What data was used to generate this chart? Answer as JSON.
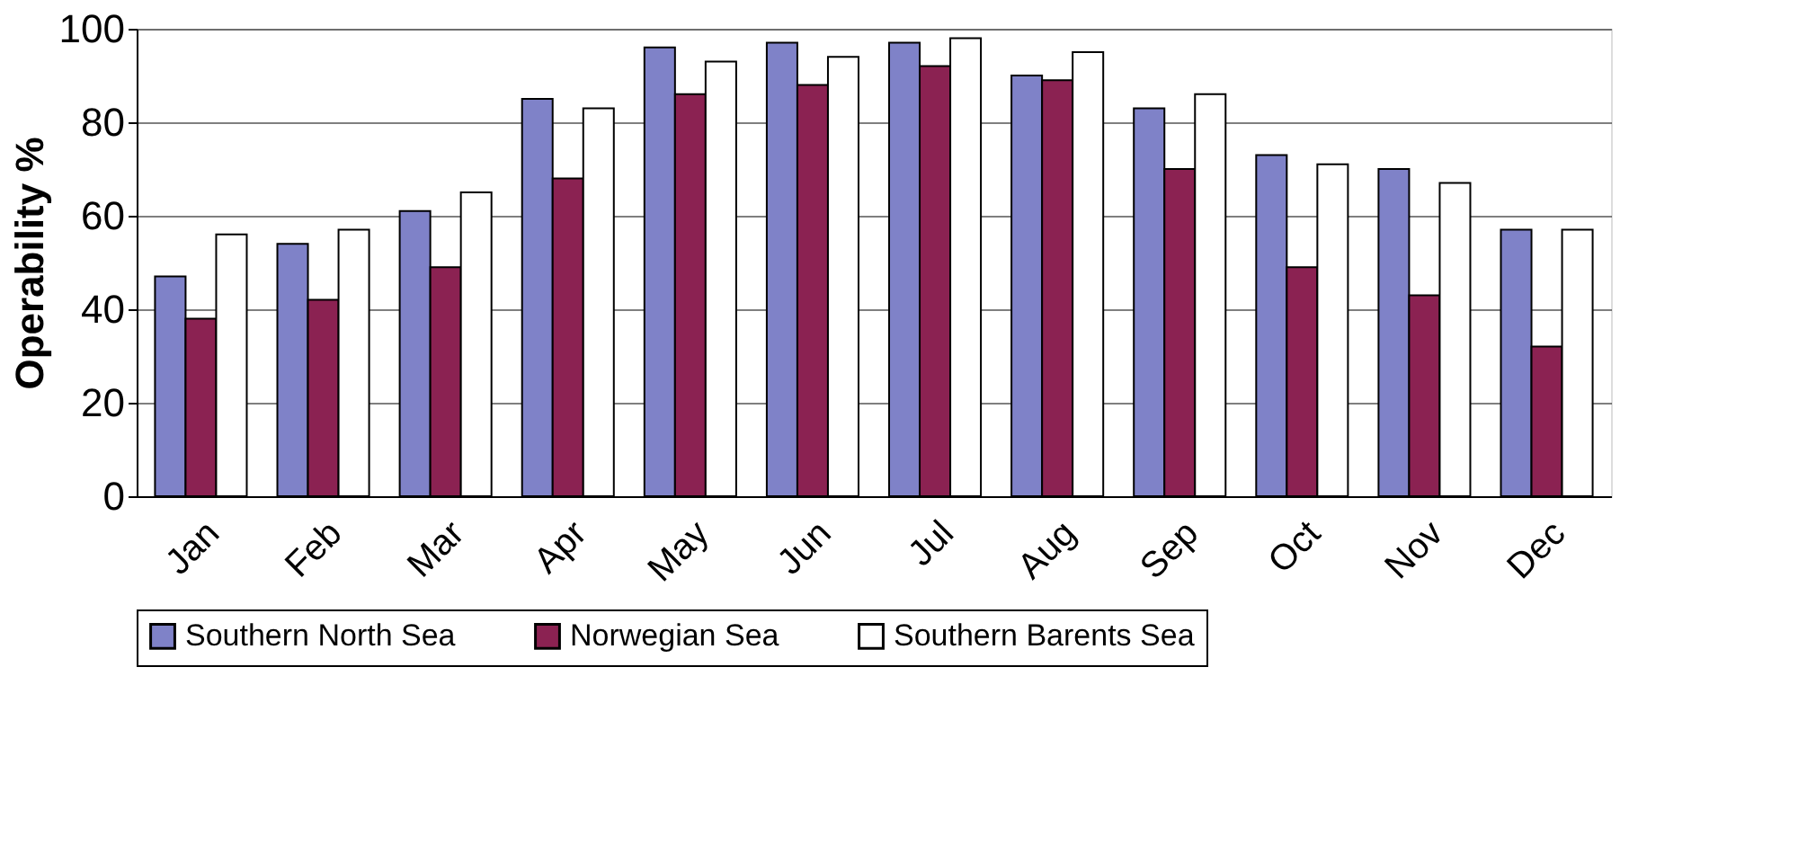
{
  "chart_data": {
    "type": "bar",
    "ylabel": "Operability %",
    "categories": [
      "Jan",
      "Feb",
      "Mar",
      "Apr",
      "May",
      "Jun",
      "Jul",
      "Aug",
      "Sep",
      "Oct",
      "Nov",
      "Dec"
    ],
    "series": [
      {
        "name": "Southern North Sea",
        "color": "#7f82c8",
        "values": [
          47,
          54,
          61,
          85,
          96,
          97,
          97,
          90,
          83,
          73,
          70,
          57
        ]
      },
      {
        "name": "Norwegian Sea",
        "color": "#8b2252",
        "values": [
          38,
          42,
          49,
          68,
          86,
          88,
          92,
          89,
          70,
          49,
          43,
          32
        ]
      },
      {
        "name": "Southern Barents Sea",
        "color": "#ffffff",
        "values": [
          56,
          57,
          65,
          83,
          93,
          94,
          98,
          95,
          86,
          71,
          67,
          57
        ]
      }
    ],
    "ylim": [
      0,
      100
    ],
    "yticks": [
      0,
      20,
      40,
      60,
      80,
      100
    ],
    "grid": "y",
    "legend": "bottom"
  }
}
